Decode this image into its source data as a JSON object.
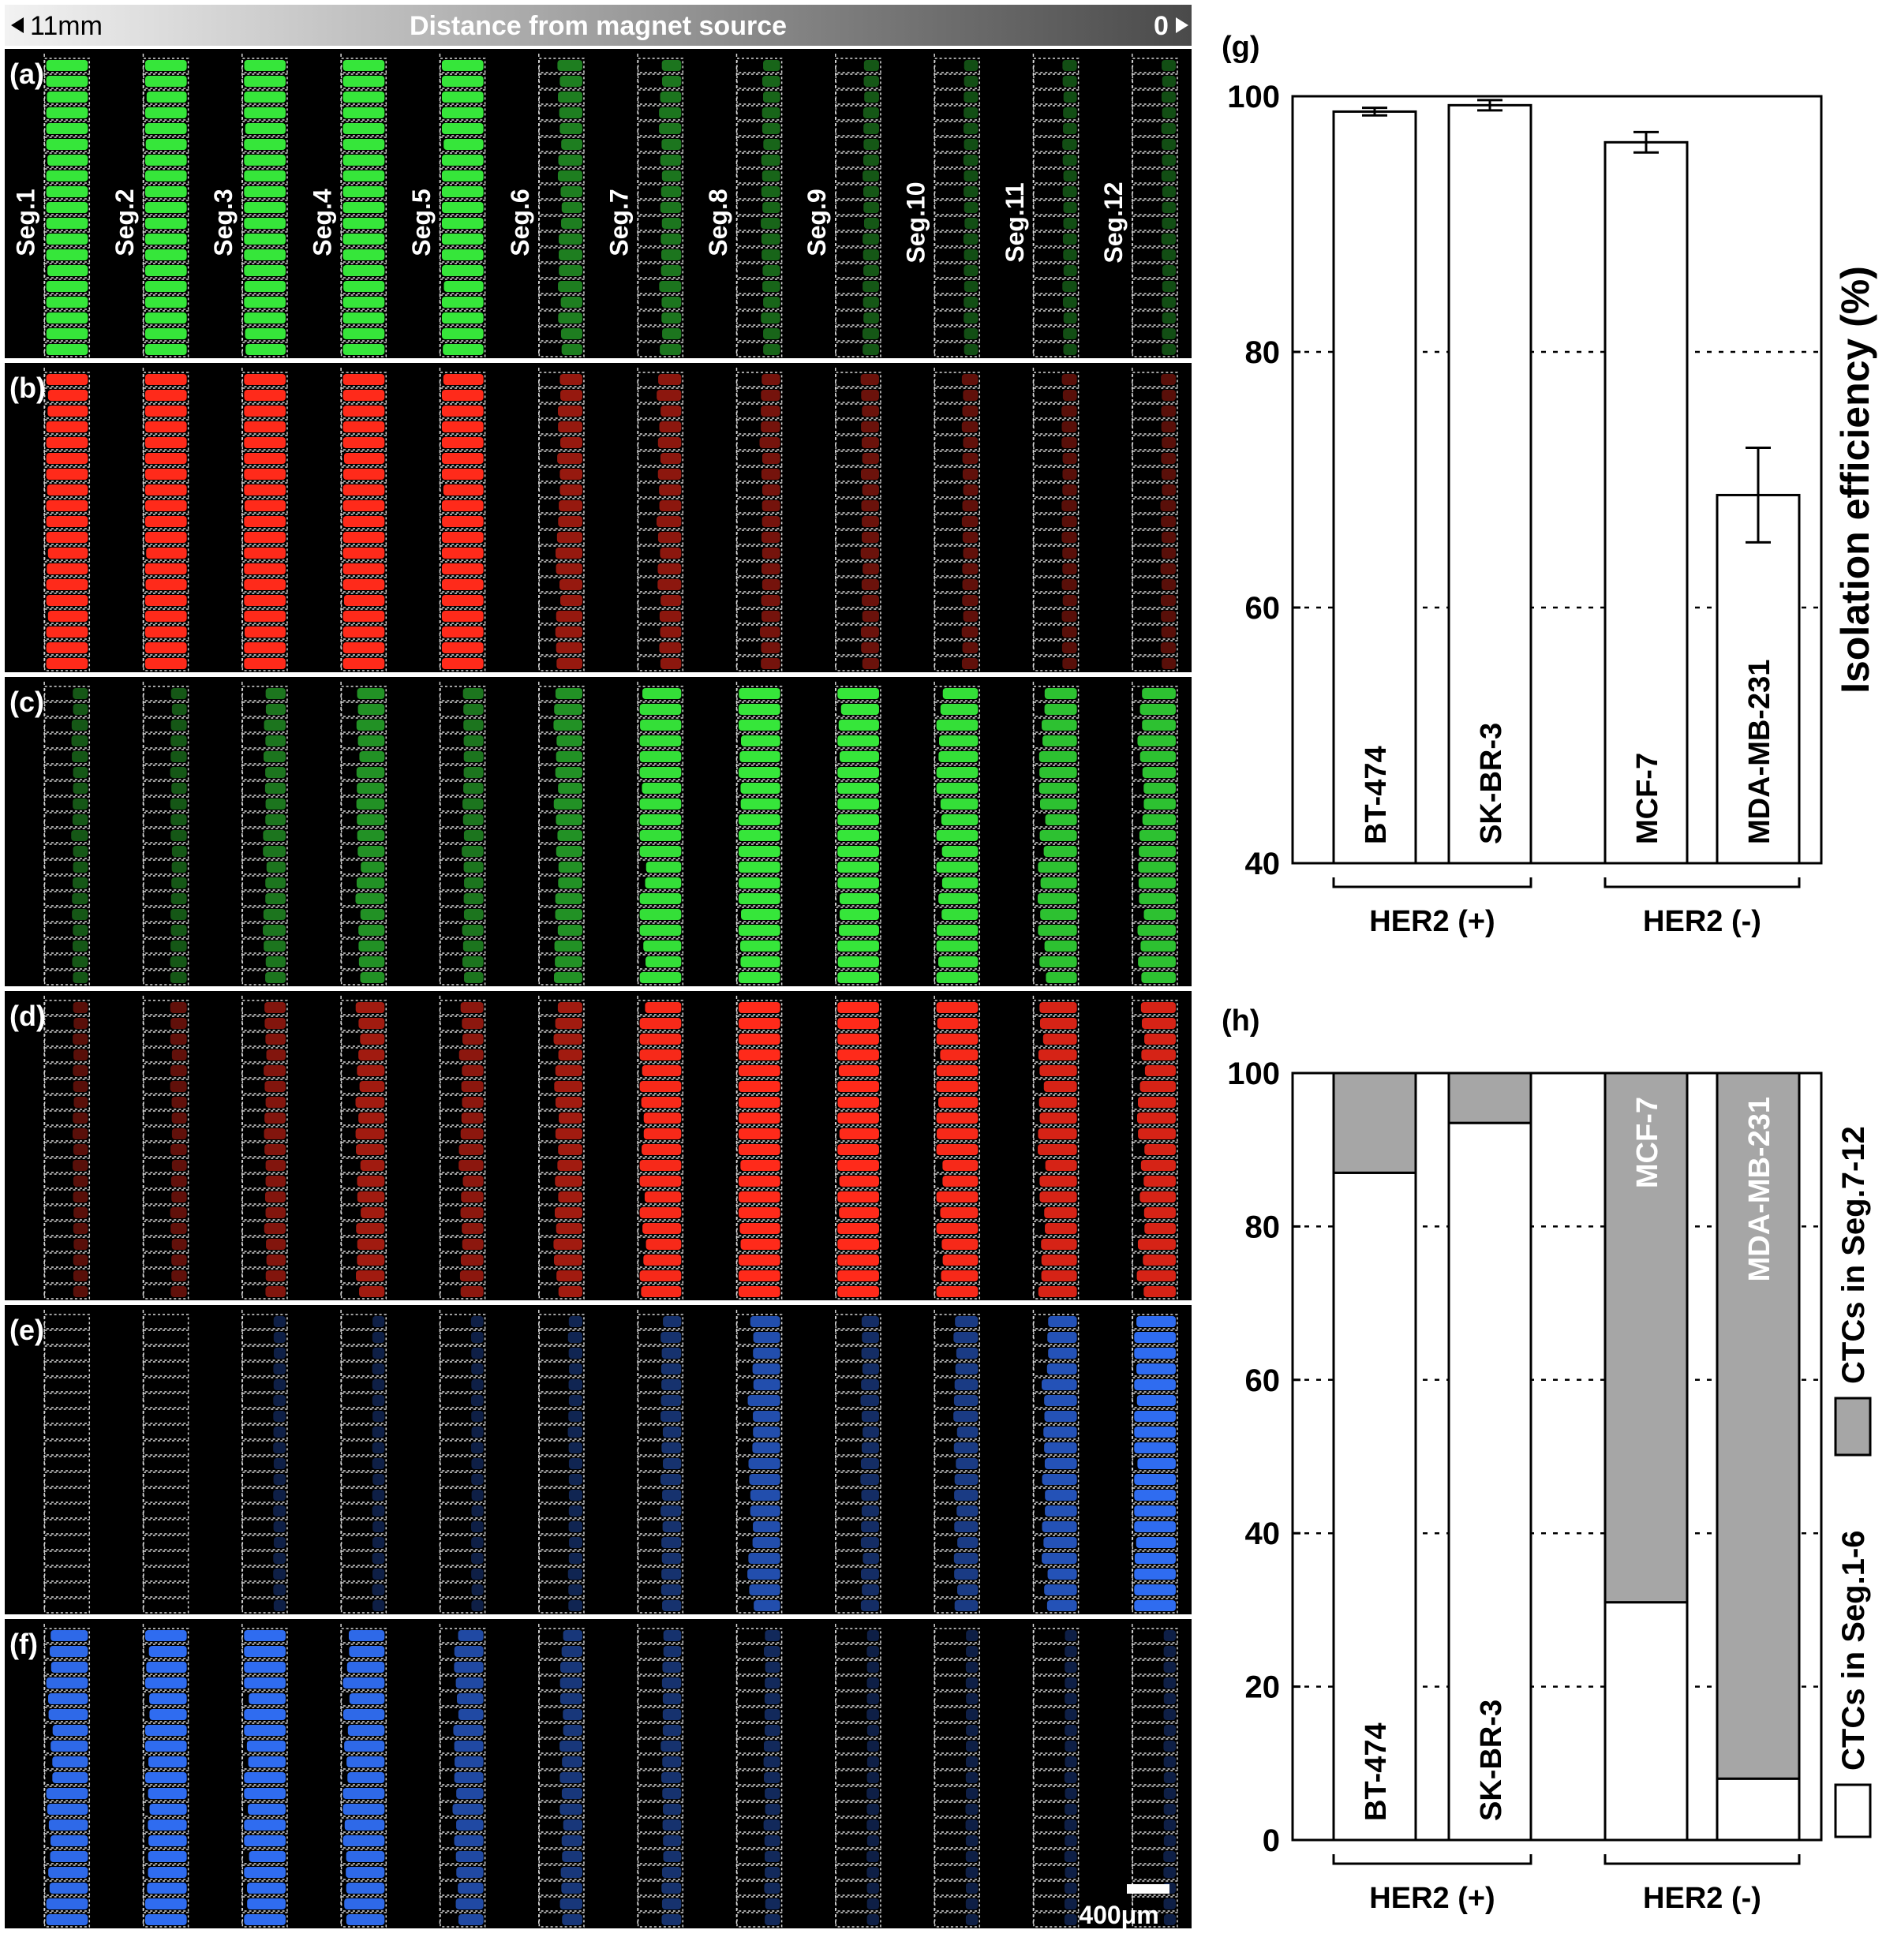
{
  "header": {
    "left_label": "11mm",
    "title": "Distance from magnet source",
    "right_label": "0"
  },
  "segments": [
    "Seg.1",
    "Seg.2",
    "Seg.3",
    "Seg.4",
    "Seg.5",
    "Seg.6",
    "Seg.7",
    "Seg.8",
    "Seg.9",
    "Seg.10",
    "Seg.11",
    "Seg.12"
  ],
  "rows": [
    {
      "label": "(a)",
      "color": "#36e63a",
      "intensity": [
        1,
        1,
        1,
        1,
        1,
        0.35,
        0.3,
        0.22,
        0.15,
        0.1,
        0.1,
        0.1
      ]
    },
    {
      "label": "(b)",
      "color": "#ff2a1a",
      "intensity": [
        1,
        1,
        1,
        1,
        1,
        0.4,
        0.35,
        0.25,
        0.2,
        0.15,
        0.12,
        0.12
      ]
    },
    {
      "label": "(c)",
      "color": "#36e63a",
      "intensity": [
        0.15,
        0.15,
        0.3,
        0.45,
        0.3,
        0.45,
        0.85,
        0.95,
        0.95,
        0.85,
        0.7,
        0.7
      ]
    },
    {
      "label": "(d)",
      "color": "#ff2a1a",
      "intensity": [
        0.12,
        0.15,
        0.3,
        0.45,
        0.35,
        0.45,
        0.85,
        1,
        1,
        0.85,
        0.7,
        0.7
      ]
    },
    {
      "label": "(e)",
      "color": "#2f6cf0",
      "intensity": [
        0,
        0.02,
        0.05,
        0.05,
        0.05,
        0.1,
        0.25,
        0.55,
        0.2,
        0.35,
        0.6,
        0.95
      ]
    },
    {
      "label": "(f)",
      "color": "#2f6cf0",
      "intensity": [
        0.85,
        0.9,
        0.9,
        0.85,
        0.5,
        0.3,
        0.25,
        0.15,
        0.05,
        0.05,
        0.05,
        0.05
      ]
    }
  ],
  "scale_bar": "400μm",
  "panel_labels": {
    "g": "(g)",
    "h": "(h)"
  },
  "colors": {
    "gray_fill": "#a6a6a6",
    "bar_fill": "#ffffff"
  },
  "chart_data": [
    {
      "type": "bar",
      "panel": "(g)",
      "categories": [
        "BT-474",
        "SK-BR-3",
        "MCF-7",
        "MDA-MB-231"
      ],
      "values": [
        98.8,
        99.3,
        96.4,
        68.8
      ],
      "errors": [
        0.3,
        0.4,
        0.8,
        3.7
      ],
      "ylabel": "Isolation efficiency (%)",
      "ylim": [
        40,
        100
      ],
      "yticks": [
        40,
        60,
        80,
        100
      ],
      "gridlines": [
        60,
        80
      ],
      "groups": [
        {
          "label": "HER2 (+)",
          "members": [
            "BT-474",
            "SK-BR-3"
          ]
        },
        {
          "label": "HER2 (-)",
          "members": [
            "MCF-7",
            "MDA-MB-231"
          ]
        }
      ]
    },
    {
      "type": "bar",
      "stacked": true,
      "panel": "(h)",
      "categories": [
        "BT-474",
        "SK-BR-3",
        "MCF-7",
        "MDA-MB-231"
      ],
      "series": [
        {
          "name": "CTCs in Seg.1-6",
          "values": [
            87,
            93.5,
            31,
            8
          ]
        },
        {
          "name": "CTCs in Seg.7-12",
          "values": [
            13,
            6.5,
            69,
            92
          ]
        }
      ],
      "ylim": [
        0,
        100
      ],
      "yticks": [
        0,
        20,
        40,
        60,
        80,
        100
      ],
      "gridlines": [
        20,
        40,
        60,
        80
      ],
      "groups": [
        {
          "label": "HER2 (+)",
          "members": [
            "BT-474",
            "SK-BR-3"
          ]
        },
        {
          "label": "HER2 (-)",
          "members": [
            "MCF-7",
            "MDA-MB-231"
          ]
        }
      ],
      "legend": "right"
    }
  ]
}
